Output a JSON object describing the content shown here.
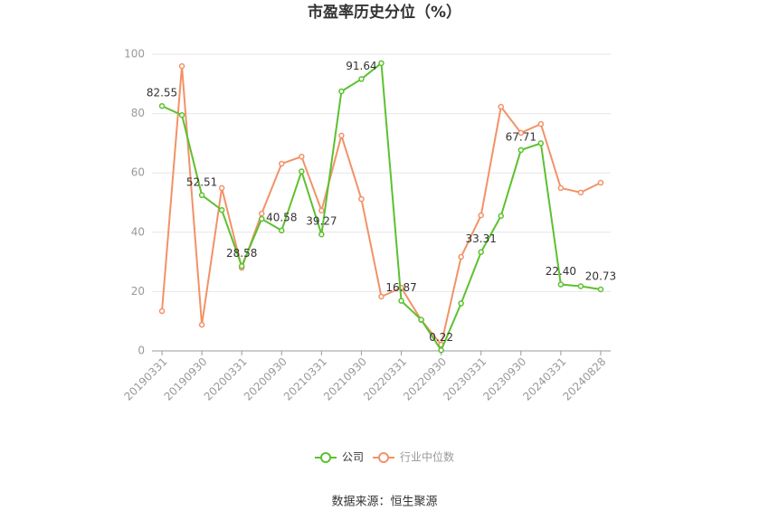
{
  "chart_data": {
    "type": "line",
    "title": "市盈率历史分位（%）",
    "categories": [
      "20190331",
      null,
      "20190930",
      null,
      "20200331",
      null,
      "20200930",
      null,
      "20210331",
      null,
      "20210930",
      null,
      "20220331",
      null,
      "20220930",
      null,
      "20230331",
      null,
      "20230930",
      null,
      "20240331",
      null,
      "20240828"
    ],
    "series": [
      {
        "name": "公司",
        "color": "#5cc12f",
        "values": [
          82.55,
          79.5,
          52.51,
          47.5,
          28.58,
          44.5,
          40.58,
          60.5,
          39.27,
          87.5,
          91.64,
          97,
          16.87,
          10.5,
          0.22,
          16,
          33.31,
          45.5,
          67.71,
          70,
          22.4,
          21.8,
          20.73
        ],
        "value_labels": [
          "82.55",
          null,
          "52.51",
          null,
          "28.58",
          null,
          "40.58",
          null,
          "39.27",
          null,
          "91.64",
          null,
          "16.87",
          null,
          "0.22",
          null,
          "33.31",
          null,
          "67.71",
          null,
          "22.40",
          null,
          "20.73"
        ]
      },
      {
        "name": "行业中位数",
        "color": "#f29268",
        "values": [
          13.4,
          96,
          8.8,
          54.9,
          28,
          46.3,
          63.1,
          65.5,
          47.3,
          72.6,
          51.2,
          18.3,
          21.3,
          10.4,
          2.1,
          31.7,
          45.7,
          82.3,
          73.5,
          76.5,
          54.9,
          53.4,
          56.7
        ]
      }
    ],
    "ylim": [
      0,
      100
    ],
    "yticks": [
      0,
      20,
      40,
      60,
      80,
      100
    ],
    "grid": true,
    "source": "数据来源：恒生聚源"
  }
}
